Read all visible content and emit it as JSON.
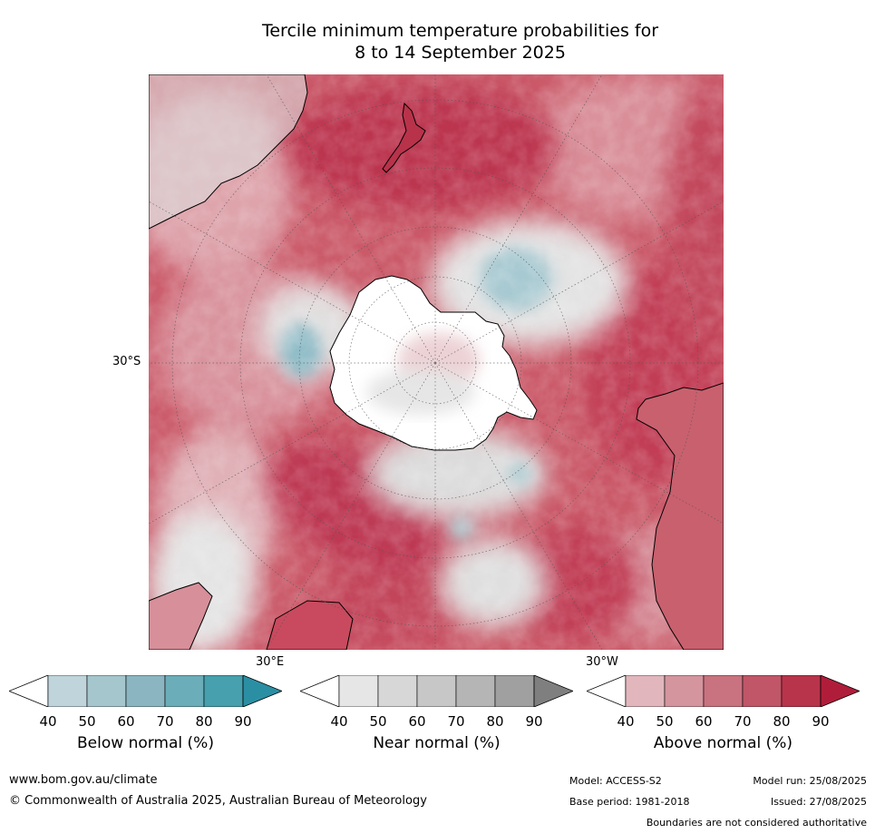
{
  "title_line1": "Tercile minimum temperature probabilities for",
  "title_line2": "8 to 14 September 2025",
  "map": {
    "lat_label": "30°S",
    "lon_label_east": "30°E",
    "lon_label_west": "30°W",
    "colors": {
      "ocean_above": "#c9505f",
      "above_strong": "#b42a44",
      "above_light": "#e0aeb6",
      "near": "#dcdcdc",
      "below": "#9fc3cc",
      "land_white": "#ffffff",
      "coast": "#000000"
    }
  },
  "legends": [
    {
      "title": "Below normal (%)",
      "ticks": [
        "40",
        "50",
        "60",
        "70",
        "80",
        "90"
      ],
      "colors": [
        "#ffffff",
        "#bfd5db",
        "#a6c6cd",
        "#8bb6c1",
        "#6badb8",
        "#46a0ae",
        "#2b8fa3"
      ]
    },
    {
      "title": "Near normal (%)",
      "ticks": [
        "40",
        "50",
        "60",
        "70",
        "80",
        "90"
      ],
      "colors": [
        "#ffffff",
        "#e6e6e6",
        "#d7d7d7",
        "#c7c7c7",
        "#b5b5b5",
        "#a0a0a0",
        "#7f7f7f"
      ]
    },
    {
      "title": "Above normal (%)",
      "ticks": [
        "40",
        "50",
        "60",
        "70",
        "80",
        "90"
      ],
      "colors": [
        "#ffffff",
        "#e1b7bd",
        "#d4959e",
        "#c8737f",
        "#c05668",
        "#b8344b",
        "#b01d3a"
      ]
    }
  ],
  "footer": {
    "website": "www.bom.gov.au/climate",
    "copyright": "© Commonwealth of Australia 2025, Australian Bureau of Meteorology",
    "model": "Model: ACCESS-S2",
    "base_period": "Base period: 1981-2018",
    "model_run": "Model run: 25/08/2025",
    "issued": "Issued: 27/08/2025",
    "disclaimer": "Boundaries are not considered authoritative"
  }
}
